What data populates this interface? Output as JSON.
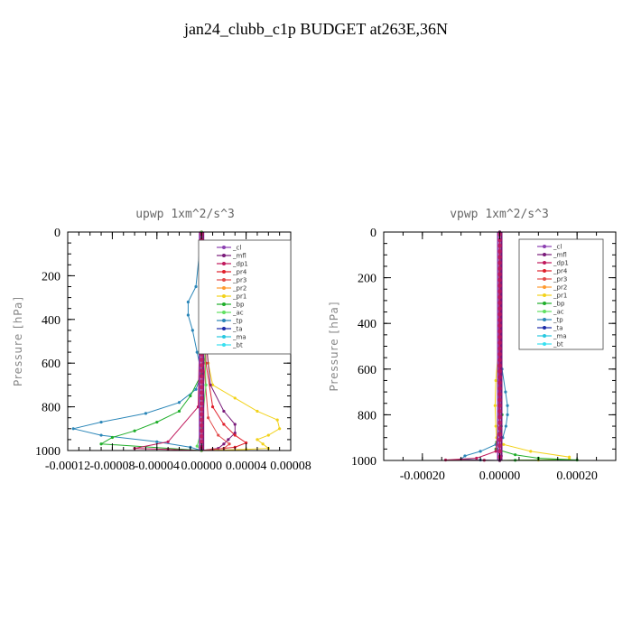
{
  "page": {
    "title": "jan24_clubb_c1p  BUDGET at263E,36N"
  },
  "legend_entries": [
    "_cl",
    "_mfl",
    "_dp1",
    "_pr4",
    "_pr3",
    "_pr2",
    "_pr1",
    "_bp",
    "_ac",
    "_tp",
    "_ta",
    "_ma",
    "_bt"
  ],
  "colors": {
    "_cl": "#8b3fb0",
    "_mfl": "#7a1a7a",
    "_dp1": "#c0185c",
    "_pr4": "#e0202c",
    "_pr3": "#e24a4a",
    "_pr2": "#ff9a2e",
    "_pr1": "#f2d21a",
    "_bp": "#1fae2a",
    "_ac": "#60e060",
    "_tp": "#2a86b8",
    "_ta": "#1a2aa8",
    "_ma": "#28c8e0",
    "_bt": "#38e0f0"
  },
  "chart_data": [
    {
      "type": "line",
      "title": "upwp   1xm^2/s^3",
      "ylabel": "Pressure [hPa]",
      "y_reversed": true,
      "ylim": [
        1000,
        0
      ],
      "xlim": [
        -0.00012,
        8e-05
      ],
      "xticks": [
        -0.00012,
        -8e-05,
        -4e-05,
        0.0,
        4e-05,
        8e-05
      ],
      "xtick_labels": [
        "-0.00012",
        "-0.00008",
        "-0.00004",
        "0.00000",
        "0.00004",
        "0.00008"
      ],
      "yticks": [
        0,
        200,
        400,
        600,
        800,
        1000
      ],
      "ytick_labels": [
        "0",
        "200",
        "400",
        "600",
        "800",
        "1000"
      ],
      "legend": "top-right",
      "series": [
        {
          "name": "_tp",
          "x": [
            0,
            -5e-06,
            -1.2e-05,
            -1.2e-05,
            -8e-06,
            -4e-06,
            0,
            -5e-06,
            -2e-05,
            -5e-05,
            -9e-05,
            -0.000115,
            -9e-05,
            -4e-05,
            -1e-05,
            0
          ],
          "y": [
            0,
            250,
            320,
            380,
            450,
            550,
            650,
            720,
            780,
            830,
            870,
            900,
            930,
            960,
            985,
            1000
          ]
        },
        {
          "name": "_bp",
          "x": [
            0,
            4e-06,
            1e-05,
            1.2e-05,
            1e-05,
            4e-06,
            0,
            -1e-05,
            -2e-05,
            -4e-05,
            -6e-05,
            -8e-05,
            -9e-05,
            0
          ],
          "y": [
            0,
            250,
            320,
            380,
            450,
            550,
            650,
            750,
            820,
            870,
            910,
            940,
            970,
            1000
          ]
        },
        {
          "name": "_pr1",
          "x": [
            0,
            2e-06,
            4e-06,
            6e-06,
            1e-05,
            3e-05,
            5e-05,
            6.8e-05,
            7e-05,
            6e-05,
            5e-05,
            5.5e-05,
            6e-05,
            4e-05,
            0
          ],
          "y": [
            0,
            300,
            450,
            600,
            700,
            760,
            820,
            860,
            900,
            930,
            950,
            970,
            990,
            995,
            1000
          ]
        },
        {
          "name": "_mfl",
          "x": [
            0,
            2e-06,
            4e-06,
            8e-06,
            2e-05,
            3e-05,
            3e-05,
            2.4e-05,
            2e-05,
            1.5e-05,
            0
          ],
          "y": [
            0,
            300,
            500,
            700,
            820,
            880,
            920,
            950,
            970,
            990,
            1000
          ]
        },
        {
          "name": "_pr4",
          "x": [
            0,
            2e-06,
            4e-06,
            1e-05,
            2e-05,
            3e-05,
            4e-05,
            3e-05,
            1e-05,
            0
          ],
          "y": [
            0,
            300,
            600,
            800,
            880,
            930,
            965,
            985,
            995,
            1000
          ]
        },
        {
          "name": "_dp1",
          "x": [
            0,
            -3e-06,
            -3e-05,
            -6e-05,
            -3e-05,
            0
          ],
          "y": [
            0,
            800,
            960,
            990,
            995,
            1000
          ]
        },
        {
          "name": "_pr3",
          "x": [
            0,
            2e-06,
            6e-06,
            1.5e-05,
            2.5e-05,
            2e-05,
            0
          ],
          "y": [
            0,
            600,
            850,
            930,
            970,
            990,
            1000
          ]
        },
        {
          "name": "_ac",
          "x": [
            0,
            2e-06,
            4e-06,
            0,
            -4e-06,
            0
          ],
          "y": [
            0,
            400,
            700,
            900,
            980,
            1000
          ]
        }
      ]
    },
    {
      "type": "line",
      "title": "vpwp   1xm^2/s^3",
      "ylabel": "Pressure [hPa]",
      "y_reversed": true,
      "ylim": [
        1000,
        0
      ],
      "xlim": [
        -0.0003,
        0.0003
      ],
      "xticks": [
        -0.0002,
        0.0,
        0.0002
      ],
      "xtick_labels": [
        "-0.00020",
        "0.00000",
        "0.00020"
      ],
      "yticks": [
        0,
        200,
        400,
        600,
        800,
        1000
      ],
      "ytick_labels": [
        "0",
        "200",
        "400",
        "600",
        "800",
        "1000"
      ],
      "legend": "top-right",
      "series": [
        {
          "name": "_tp",
          "x": [
            0,
            2e-06,
            6e-06,
            1.5e-05,
            2e-05,
            2e-05,
            1.6e-05,
            8e-06,
            -1e-05,
            -5e-05,
            -9e-05,
            -0.0001,
            -5e-05,
            0
          ],
          "y": [
            0,
            400,
            600,
            700,
            760,
            800,
            850,
            900,
            930,
            960,
            980,
            995,
            998,
            1000
          ]
        },
        {
          "name": "_pr1",
          "x": [
            0,
            -3e-06,
            -1e-05,
            -1.2e-05,
            -1e-05,
            -8e-06,
            1e-05,
            8e-05,
            0.00018,
            0.00018,
            0.0001,
            0
          ],
          "y": [
            0,
            500,
            650,
            760,
            850,
            900,
            930,
            960,
            985,
            995,
            998,
            1000
          ]
        },
        {
          "name": "_bp",
          "x": [
            0,
            2e-06,
            6e-06,
            4e-06,
            0,
            -8e-06,
            -1e-05,
            4e-05,
            0.0001,
            0.0002,
            4e-05,
            0
          ],
          "y": [
            0,
            600,
            800,
            850,
            880,
            920,
            950,
            975,
            990,
            998,
            999,
            1000
          ]
        },
        {
          "name": "_dp1",
          "x": [
            0,
            -2e-06,
            -1e-05,
            -6e-05,
            -0.00014,
            -4e-05,
            0
          ],
          "y": [
            0,
            800,
            960,
            990,
            998,
            999,
            1000
          ]
        },
        {
          "name": "_mfl",
          "x": [
            0,
            2e-06,
            4e-06,
            4e-06,
            0
          ],
          "y": [
            0,
            600,
            900,
            980,
            1000
          ]
        }
      ]
    }
  ]
}
